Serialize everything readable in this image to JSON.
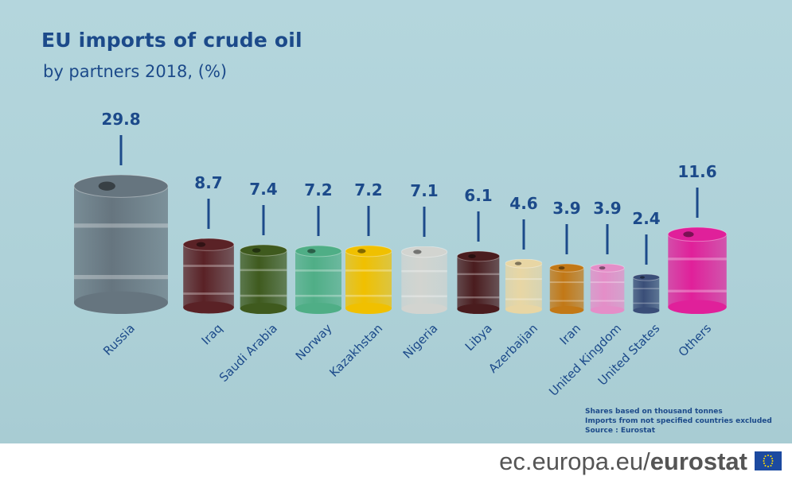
{
  "header": {
    "title": "EU imports of crude oil",
    "subtitle": "by partners 2018, (%)"
  },
  "notes": [
    "Shares based on thousand tonnes",
    "Imports from not specified countries excluded",
    "Source : Eurostat"
  ],
  "footer": {
    "site": "ec.europa.eu/",
    "brand": "eurostat"
  },
  "chart_data": {
    "type": "bar",
    "title": "EU imports of crude oil",
    "subtitle": "by partners 2018, (%)",
    "xlabel": "",
    "ylabel": "%",
    "categories": [
      "Russia",
      "Iraq",
      "Saudi Arabia",
      "Norway",
      "Kazakhstan",
      "Nigeria",
      "Libya",
      "Azerbaijan",
      "Iran",
      "United Kingdom",
      "United States",
      "Others"
    ],
    "values": [
      29.8,
      8.7,
      7.4,
      7.2,
      7.2,
      7.1,
      6.1,
      4.6,
      3.9,
      3.9,
      2.4,
      11.6
    ],
    "value_labels": [
      "29.8",
      "8.7",
      "7.4",
      "7.2",
      "7.2",
      "7.1",
      "6.1",
      "4.6",
      "3.9",
      "3.9",
      "2.4",
      "11.6"
    ],
    "colors": [
      "#66757f",
      "#5a2226",
      "#3f5a1e",
      "#4fae86",
      "#f0c000",
      "#d2d4d0",
      "#4a1c1e",
      "#e8d6a4",
      "#c27816",
      "#e48ec8",
      "#3a4e78",
      "#e0209a"
    ],
    "grid": false,
    "legend": "none"
  }
}
